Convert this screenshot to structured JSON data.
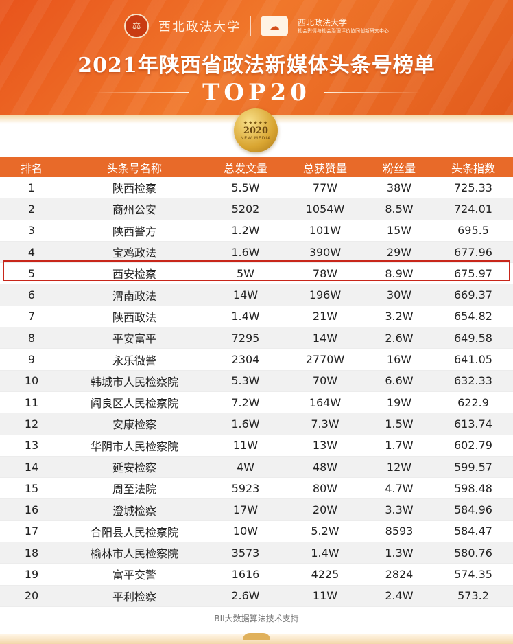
{
  "header": {
    "logo_left_text": "西北政法大学",
    "logo_right_line1": "西北政法大学",
    "logo_right_line2": "社会舆情与社会治理评价协同创新研究中心",
    "title": "2021年陕西省政法新媒体头条号榜单",
    "subtitle": "TOP20",
    "badge_year": "2020",
    "badge_tag": "NEW MEDIA",
    "badge_stars": "★★★★★"
  },
  "table": {
    "columns": [
      "排名",
      "头条号名称",
      "总发文量",
      "总获赞量",
      "粉丝量",
      "头条指数"
    ],
    "rows": [
      [
        "1",
        "陕西检察",
        "5.5W",
        "77W",
        "38W",
        "725.33"
      ],
      [
        "2",
        "商州公安",
        "5202",
        "1054W",
        "8.5W",
        "724.01"
      ],
      [
        "3",
        "陕西警方",
        "1.2W",
        "101W",
        "15W",
        "695.5"
      ],
      [
        "4",
        "宝鸡政法",
        "1.6W",
        "390W",
        "29W",
        "677.96"
      ],
      [
        "5",
        "西安检察",
        "5W",
        "78W",
        "8.9W",
        "675.97"
      ],
      [
        "6",
        "渭南政法",
        "14W",
        "196W",
        "30W",
        "669.37"
      ],
      [
        "7",
        "陕西政法",
        "1.4W",
        "21W",
        "3.2W",
        "654.82"
      ],
      [
        "8",
        "平安富平",
        "7295",
        "14W",
        "2.6W",
        "649.58"
      ],
      [
        "9",
        "永乐微警",
        "2304",
        "2770W",
        "16W",
        "641.05"
      ],
      [
        "10",
        "韩城市人民检察院",
        "5.3W",
        "70W",
        "6.6W",
        "632.33"
      ],
      [
        "11",
        "阎良区人民检察院",
        "7.2W",
        "164W",
        "19W",
        "622.9"
      ],
      [
        "12",
        "安康检察",
        "1.6W",
        "7.3W",
        "1.5W",
        "613.74"
      ],
      [
        "13",
        "华阴市人民检察院",
        "11W",
        "13W",
        "1.7W",
        "602.79"
      ],
      [
        "14",
        "延安检察",
        "4W",
        "48W",
        "12W",
        "599.57"
      ],
      [
        "15",
        "周至法院",
        "5923",
        "80W",
        "4.7W",
        "598.48"
      ],
      [
        "16",
        "澄城检察",
        "17W",
        "20W",
        "3.3W",
        "584.96"
      ],
      [
        "17",
        "合阳县人民检察院",
        "10W",
        "5.2W",
        "8593",
        "584.47"
      ],
      [
        "18",
        "榆林市人民检察院",
        "3573",
        "1.4W",
        "1.3W",
        "580.76"
      ],
      [
        "19",
        "富平交警",
        "1616",
        "4225",
        "2824",
        "574.35"
      ],
      [
        "20",
        "平利检察",
        "2.6W",
        "11W",
        "2.4W",
        "573.2"
      ]
    ],
    "highlight_rank": "5",
    "highlight_color": "#c8261a",
    "header_color": "#e86a29"
  },
  "footer": {
    "credit": "BII大数据算法技术支持"
  }
}
